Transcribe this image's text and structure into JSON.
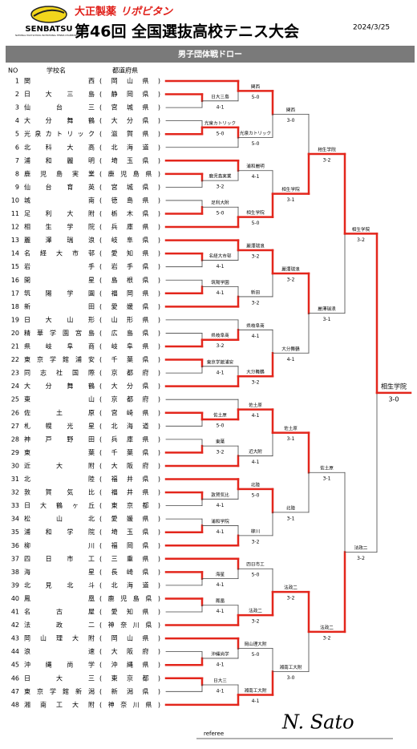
{
  "header": {
    "logo": "SENBATSU",
    "logo_sub": "NATIONAL HIGH SCHOOL INVITATIONAL TENNIS CHAMPIONSHIPS",
    "sponsor": "大正製薬",
    "sponsor_brand": "リポビタン",
    "title": "第46回 全国選抜高校テニス大会",
    "date": "2024/3/25",
    "banner": "男子団体戦ドロー"
  },
  "columns": {
    "no": "NO",
    "school": "学校名",
    "pref": "都道府県"
  },
  "teams": [
    {
      "no": 1,
      "name": "関西",
      "pref": "(岡山県)"
    },
    {
      "no": 2,
      "name": "日大三島",
      "pref": "(静岡県)"
    },
    {
      "no": 3,
      "name": "仙台三",
      "pref": "(宮城県)"
    },
    {
      "no": 4,
      "name": "大分舞鶴",
      "pref": "(大分県)"
    },
    {
      "no": 5,
      "name": "光泉カトリック",
      "pref": "(滋賀県)"
    },
    {
      "no": 6,
      "name": "北科大高",
      "pref": "(北海道)"
    },
    {
      "no": 7,
      "name": "浦和麗明",
      "pref": "(埼玉県)"
    },
    {
      "no": 8,
      "name": "鹿児島実業",
      "pref": "(鹿児島県)"
    },
    {
      "no": 9,
      "name": "仙台育英",
      "pref": "(宮城県)"
    },
    {
      "no": 10,
      "name": "城南",
      "pref": "(徳島県)"
    },
    {
      "no": 11,
      "name": "足利大附",
      "pref": "(栃木県)"
    },
    {
      "no": 12,
      "name": "相生学院",
      "pref": "(兵庫県)"
    },
    {
      "no": 13,
      "name": "麗澤瑞浪",
      "pref": "(岐阜県)"
    },
    {
      "no": 14,
      "name": "名経大市邨",
      "pref": "(愛知県)"
    },
    {
      "no": 15,
      "name": "岩手",
      "pref": "(岩手県)"
    },
    {
      "no": 16,
      "name": "開星",
      "pref": "(島根県)"
    },
    {
      "no": 17,
      "name": "筑陽学園",
      "pref": "(福岡県)"
    },
    {
      "no": 18,
      "name": "新田",
      "pref": "(愛媛県)"
    },
    {
      "no": 19,
      "name": "日大山形",
      "pref": "(山形県)"
    },
    {
      "no": 20,
      "name": "精華学園宮島",
      "pref": "(広島県)"
    },
    {
      "no": 21,
      "name": "県岐阜商",
      "pref": "(岐阜県)"
    },
    {
      "no": 22,
      "name": "東京学館浦安",
      "pref": "(千葉県)"
    },
    {
      "no": 23,
      "name": "同志社国際",
      "pref": "(京都府)"
    },
    {
      "no": 24,
      "name": "大分舞鶴",
      "pref": "(大分県)"
    },
    {
      "no": 25,
      "name": "東山",
      "pref": "(京都府)"
    },
    {
      "no": 26,
      "name": "佐土原",
      "pref": "(宮崎県)"
    },
    {
      "no": 27,
      "name": "札幌光星",
      "pref": "(北海道)"
    },
    {
      "no": 28,
      "name": "神戸野田",
      "pref": "(兵庫県)"
    },
    {
      "no": 29,
      "name": "東葉",
      "pref": "(千葉県)"
    },
    {
      "no": 30,
      "name": "近大附",
      "pref": "(大阪府)"
    },
    {
      "no": 31,
      "name": "北陸",
      "pref": "(福井県)"
    },
    {
      "no": 32,
      "name": "敦賀気比",
      "pref": "(福井県)"
    },
    {
      "no": 33,
      "name": "日大鶴ヶ丘",
      "pref": "(東京都)"
    },
    {
      "no": 34,
      "name": "松山北",
      "pref": "(愛媛県)"
    },
    {
      "no": 35,
      "name": "浦和学院",
      "pref": "(埼玉県)"
    },
    {
      "no": 36,
      "name": "柳川",
      "pref": "(福岡県)"
    },
    {
      "no": 37,
      "name": "四日市工",
      "pref": "(三重県)"
    },
    {
      "no": 38,
      "name": "海星",
      "pref": "(長崎県)"
    },
    {
      "no": 39,
      "name": "北見北斗",
      "pref": "(北海道)"
    },
    {
      "no": 40,
      "name": "鳳凰",
      "pref": "(鹿児島県)"
    },
    {
      "no": 41,
      "name": "名古屋",
      "pref": "(愛知県)"
    },
    {
      "no": 42,
      "name": "法政二",
      "pref": "(神奈川県)"
    },
    {
      "no": 43,
      "name": "岡山理大附",
      "pref": "(岡山県)"
    },
    {
      "no": 44,
      "name": "浪速",
      "pref": "(大阪府)"
    },
    {
      "no": 45,
      "name": "沖縄尚学",
      "pref": "(沖縄県)"
    },
    {
      "no": 46,
      "name": "日大三",
      "pref": "(東京都)"
    },
    {
      "no": 47,
      "name": "東京学館新潟",
      "pref": "(新潟県)"
    },
    {
      "no": 48,
      "name": "湘南工大附",
      "pref": "(神奈川県)"
    }
  ],
  "rounds": [
    [
      {
        "winner": "日大三島",
        "score": "4-1"
      },
      {
        "winner": "光泉カトリック",
        "score": "5-0"
      },
      {
        "winner": "鹿児島実業",
        "score": "3-2"
      },
      {
        "winner": "足利大附",
        "score": "5-0"
      },
      {
        "winner": "名経大市邨",
        "score": "4-1"
      },
      {
        "winner": "筑陽学園",
        "score": "4-1"
      },
      {
        "winner": "県岐阜商",
        "score": "3-2"
      },
      {
        "winner": "東京学館浦安",
        "score": "4-1"
      },
      {
        "winner": "佐土原",
        "score": "5-0"
      },
      {
        "winner": "東葉",
        "score": "3-2"
      },
      {
        "winner": "敦賀気比",
        "score": "4-1"
      },
      {
        "winner": "浦和学院",
        "score": "4-1"
      },
      {
        "winner": "海星",
        "score": "4-1"
      },
      {
        "winner": "鳳凰",
        "score": "4-1"
      },
      {
        "winner": "沖縄尚学",
        "score": "4-1"
      },
      {
        "winner": "日大三",
        "score": "4-1"
      }
    ],
    [
      {
        "winner": "関西",
        "score": "5-0"
      },
      {
        "winner": "光泉カトリック",
        "score": "5-0"
      },
      {
        "winner": "浦和麗明",
        "score": "4-1"
      },
      {
        "winner": "相生学院",
        "score": "5-0"
      },
      {
        "winner": "麗澤瑞浪",
        "score": "3-2"
      },
      {
        "winner": "新田",
        "score": "3-2"
      },
      {
        "winner": "県岐阜商",
        "score": "4-1"
      },
      {
        "winner": "大分舞鶴",
        "score": "3-2"
      },
      {
        "winner": "佐土原",
        "score": "4-1"
      },
      {
        "winner": "近大附",
        "score": "4-1"
      },
      {
        "winner": "北陸",
        "score": "5-0"
      },
      {
        "winner": "柳川",
        "score": "3-2"
      },
      {
        "winner": "四日市工",
        "score": "5-0"
      },
      {
        "winner": "法政二",
        "score": "3-2"
      },
      {
        "winner": "岡山理大附",
        "score": "5-0"
      },
      {
        "winner": "湘南工大附",
        "score": "4-1"
      }
    ],
    [
      {
        "winner": "関西",
        "score": "3-0"
      },
      {
        "winner": "相生学院",
        "score": "3-1"
      },
      {
        "winner": "麗澤瑞浪",
        "score": "3-2"
      },
      {
        "winner": "大分舞鶴",
        "score": "4-1"
      },
      {
        "winner": "佐土原",
        "score": "3-1"
      },
      {
        "winner": "北陸",
        "score": "3-1"
      },
      {
        "winner": "法政二",
        "score": "3-2"
      },
      {
        "winner": "湘南工大附",
        "score": "3-0"
      }
    ],
    [
      {
        "winner": "相生学院",
        "score": "3-2"
      },
      {
        "winner": "麗澤瑞浪",
        "score": "3-1"
      },
      {
        "winner": "佐土原",
        "score": "3-1"
      },
      {
        "winner": "法政二",
        "score": "3-2"
      }
    ],
    [
      {
        "winner": "相生学院",
        "score": "3-2"
      },
      {
        "winner": "法政二",
        "score": "3-2"
      }
    ],
    [
      {
        "winner": "相生学院",
        "score": "3-0"
      }
    ]
  ],
  "footer": {
    "referee": "referee",
    "signature": "N. Sato"
  }
}
